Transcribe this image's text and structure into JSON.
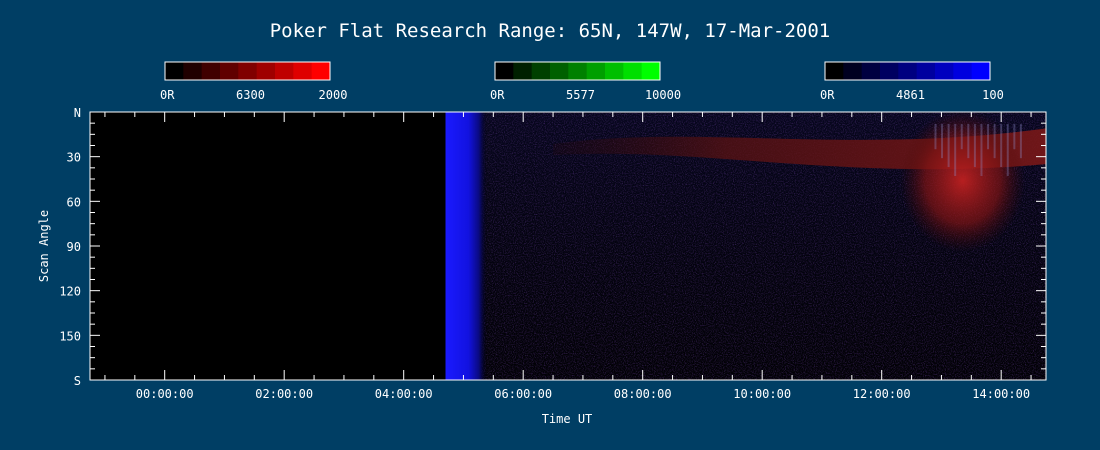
{
  "chart_data": {
    "type": "heatmap",
    "title": "Poker Flat Research Range: 65N, 147W, 17-Mar-2001",
    "xlabel": "Time UT",
    "ylabel": "Scan Angle",
    "x_ticks": [
      "00:00:00",
      "02:00:00",
      "04:00:00",
      "06:00:00",
      "08:00:00",
      "10:00:00",
      "12:00:00",
      "14:00:00"
    ],
    "x_range_hours": [
      -1.25,
      14.75
    ],
    "y_ticks": [
      "N",
      "30",
      "60",
      "90",
      "120",
      "150",
      "S"
    ],
    "y_range_deg": [
      0,
      180
    ],
    "colorbars": [
      {
        "channel": "6300",
        "min_label": "0R",
        "center_label": "6300",
        "max_label": "2000",
        "max": 2000,
        "color": "#ff0000"
      },
      {
        "channel": "5577",
        "min_label": "0R",
        "center_label": "5577",
        "max_label": "10000",
        "max": 10000,
        "color": "#00ff00"
      },
      {
        "channel": "4861",
        "min_label": "0R",
        "center_label": "4861",
        "max_label": "100",
        "max": 100,
        "color": "#0000ff"
      }
    ],
    "data_start_hours": 4.7,
    "features": [
      {
        "channel": "4861",
        "description": "strong band",
        "time_hours": [
          4.7,
          5.4
        ],
        "angle_deg": [
          0,
          180
        ]
      },
      {
        "channel": "6300",
        "description": "arc",
        "time_hours": [
          6.5,
          14.75
        ],
        "angle_deg": [
          5,
          35
        ]
      },
      {
        "channel": "6300",
        "description": "enhancement",
        "time_hours": [
          12.5,
          14.4
        ],
        "angle_deg": [
          10,
          90
        ]
      }
    ]
  },
  "colors": {
    "background": "#003e64",
    "axis": "#ffffff"
  }
}
